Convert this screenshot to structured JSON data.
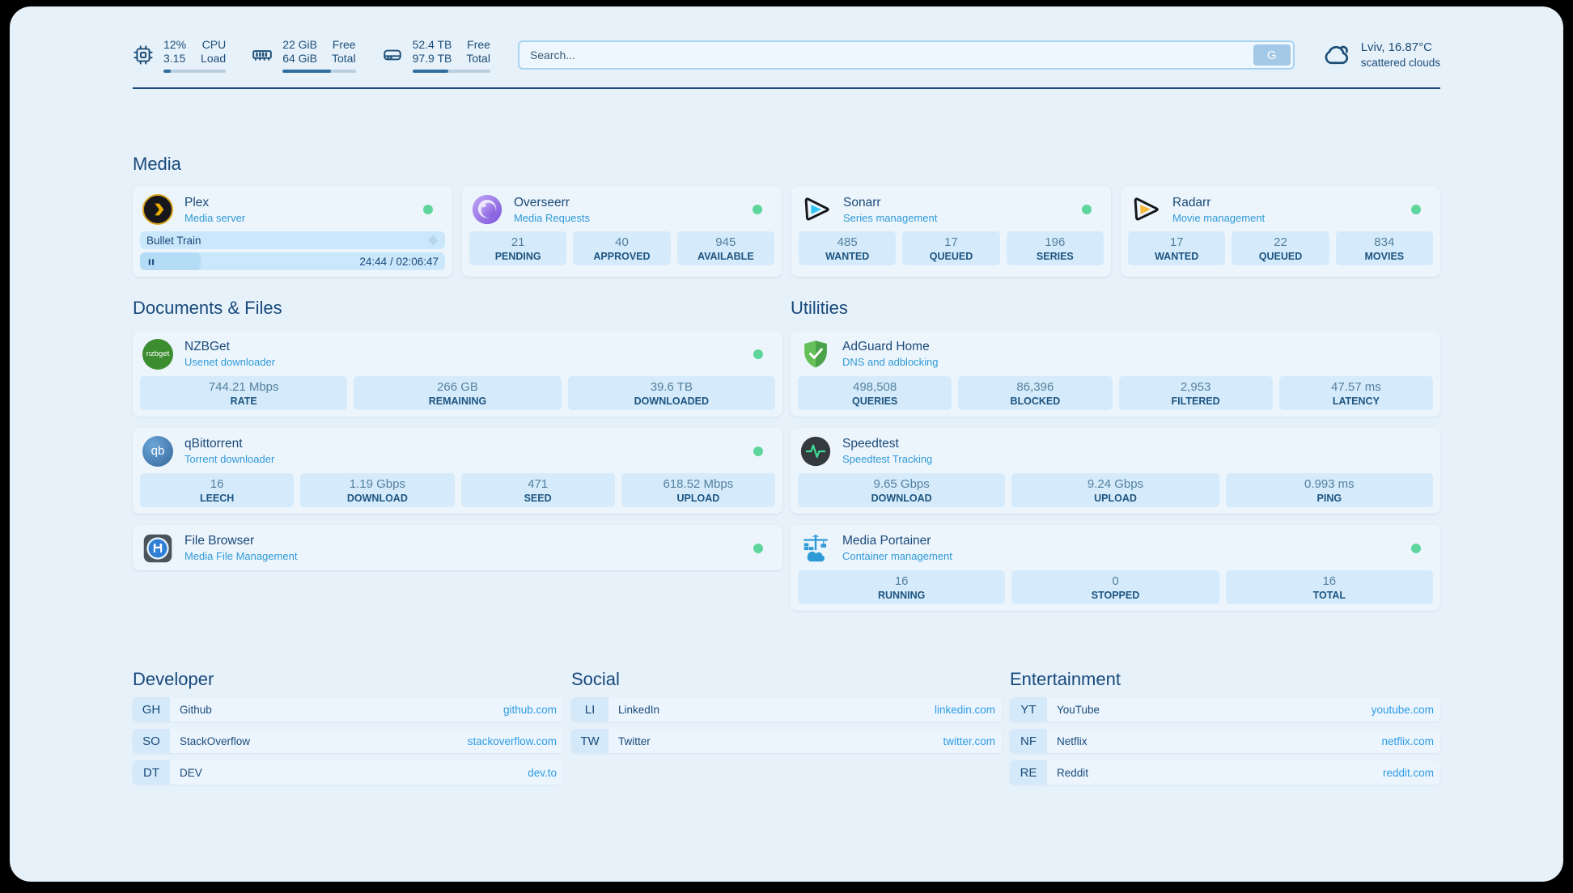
{
  "header": {
    "stats": [
      {
        "value1": "12%",
        "value2": "3.15",
        "label1": "CPU",
        "label2": "Load",
        "progress": 12
      },
      {
        "value1": "22 GiB",
        "value2": "64 GiB",
        "label1": "Free",
        "label2": "Total",
        "progress": 66
      },
      {
        "value1": "52.4 TB",
        "value2": "97.9 TB",
        "label1": "Free",
        "label2": "Total",
        "progress": 46
      }
    ],
    "search": {
      "placeholder": "Search...",
      "button_label": "G"
    },
    "weather": {
      "location": "Lviv, 16.87°C",
      "condition": "scattered clouds"
    }
  },
  "media": {
    "title": "Media",
    "plex": {
      "name": "Plex",
      "desc": "Media server",
      "now_playing": "Bullet Train",
      "time": "24:44 / 02:06:47",
      "progress_pct": 20
    },
    "cards": [
      {
        "name": "Overseerr",
        "desc": "Media Requests",
        "stats": [
          {
            "value": "21",
            "label": "PENDING"
          },
          {
            "value": "40",
            "label": "APPROVED"
          },
          {
            "value": "945",
            "label": "AVAILABLE"
          }
        ]
      },
      {
        "name": "Sonarr",
        "desc": "Series management",
        "stats": [
          {
            "value": "485",
            "label": "WANTED"
          },
          {
            "value": "17",
            "label": "QUEUED"
          },
          {
            "value": "196",
            "label": "SERIES"
          }
        ]
      },
      {
        "name": "Radarr",
        "desc": "Movie management",
        "stats": [
          {
            "value": "17",
            "label": "WANTED"
          },
          {
            "value": "22",
            "label": "QUEUED"
          },
          {
            "value": "834",
            "label": "MOVIES"
          }
        ]
      }
    ]
  },
  "documents": {
    "title": "Documents & Files",
    "cards": [
      {
        "name": "NZBGet",
        "desc": "Usenet downloader",
        "icon_text": "nzbget",
        "stats": [
          {
            "value": "744.21 Mbps",
            "label": "RATE"
          },
          {
            "value": "266 GB",
            "label": "REMAINING"
          },
          {
            "value": "39.6 TB",
            "label": "DOWNLOADED"
          }
        ]
      },
      {
        "name": "qBittorrent",
        "desc": "Torrent downloader",
        "icon_text": "qb",
        "stats": [
          {
            "value": "16",
            "label": "LEECH"
          },
          {
            "value": "1.19 Gbps",
            "label": "DOWNLOAD"
          },
          {
            "value": "471",
            "label": "SEED"
          },
          {
            "value": "618.52 Mbps",
            "label": "UPLOAD"
          }
        ]
      },
      {
        "name": "File Browser",
        "desc": "Media File Management",
        "stats": []
      }
    ]
  },
  "utilities": {
    "title": "Utilities",
    "cards": [
      {
        "name": "AdGuard Home",
        "desc": "DNS and adblocking",
        "stats": [
          {
            "value": "498,508",
            "label": "QUERIES"
          },
          {
            "value": "86,396",
            "label": "BLOCKED"
          },
          {
            "value": "2,953",
            "label": "FILTERED"
          },
          {
            "value": "47.57 ms",
            "label": "LATENCY"
          }
        ]
      },
      {
        "name": "Speedtest",
        "desc": "Speedtest Tracking",
        "stats": [
          {
            "value": "9.65 Gbps",
            "label": "DOWNLOAD"
          },
          {
            "value": "9.24 Gbps",
            "label": "UPLOAD"
          },
          {
            "value": "0.993 ms",
            "label": "PING"
          }
        ]
      },
      {
        "name": "Media Portainer",
        "desc": "Container management",
        "stats": [
          {
            "value": "16",
            "label": "RUNNING"
          },
          {
            "value": "0",
            "label": "STOPPED"
          },
          {
            "value": "16",
            "label": "TOTAL"
          }
        ]
      }
    ]
  },
  "links": {
    "developer": {
      "title": "Developer",
      "items": [
        {
          "abbr": "GH",
          "name": "Github",
          "url": "github.com"
        },
        {
          "abbr": "SO",
          "name": "StackOverflow",
          "url": "stackoverflow.com"
        },
        {
          "abbr": "DT",
          "name": "DEV",
          "url": "dev.to"
        }
      ]
    },
    "social": {
      "title": "Social",
      "items": [
        {
          "abbr": "LI",
          "name": "LinkedIn",
          "url": "linkedin.com"
        },
        {
          "abbr": "TW",
          "name": "Twitter",
          "url": "twitter.com"
        }
      ]
    },
    "entertainment": {
      "title": "Entertainment",
      "items": [
        {
          "abbr": "YT",
          "name": "YouTube",
          "url": "youtube.com"
        },
        {
          "abbr": "NF",
          "name": "Netflix",
          "url": "netflix.com"
        },
        {
          "abbr": "RE",
          "name": "Reddit",
          "url": "reddit.com"
        }
      ]
    }
  }
}
